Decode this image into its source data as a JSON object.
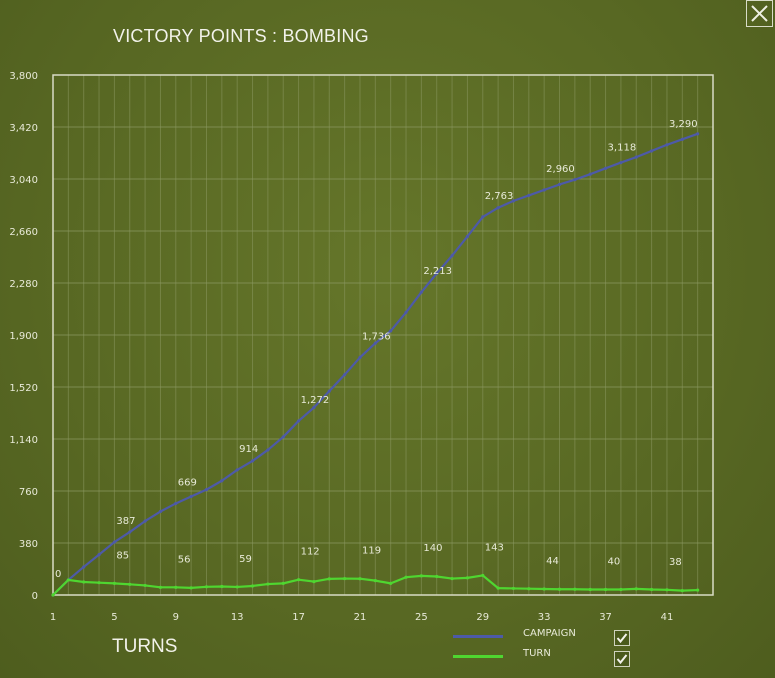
{
  "window": {
    "title": "VICTORY POINTS : BOMBING",
    "close_label": "close"
  },
  "colors": {
    "campaign": "#4d5aa8",
    "turn": "#4fd630",
    "grid": "#8a9760",
    "frame": "#d9dcc6",
    "text": "#e8ead8"
  },
  "legend": {
    "items": [
      {
        "label": "CAMPAIGN",
        "checked": true
      },
      {
        "label": "TURN",
        "checked": true
      }
    ]
  },
  "chart_data": {
    "type": "line",
    "title": "VICTORY POINTS : BOMBING",
    "xlabel": "TURNS",
    "ylabel": "",
    "xlim": [
      1,
      44
    ],
    "ylim": [
      0,
      3800
    ],
    "yticks": [
      0,
      380,
      760,
      1140,
      1520,
      1900,
      2280,
      2660,
      3040,
      3420,
      3800
    ],
    "ytick_labels": [
      "0",
      "380",
      "760",
      "1,140",
      "1,520",
      "1,900",
      "2,280",
      "2,660",
      "3,040",
      "3,420",
      "3,800"
    ],
    "xticks": [
      1,
      5,
      9,
      13,
      17,
      21,
      25,
      29,
      33,
      37,
      41
    ],
    "grid": true,
    "legend_position": "bottom-right",
    "series": [
      {
        "name": "CAMPAIGN",
        "color": "#4d5aa8",
        "x": [
          1,
          2,
          3,
          4,
          5,
          6,
          7,
          8,
          9,
          10,
          11,
          12,
          13,
          14,
          15,
          16,
          17,
          18,
          19,
          20,
          21,
          22,
          23,
          24,
          25,
          26,
          27,
          28,
          29,
          30,
          31,
          32,
          33,
          34,
          35,
          36,
          37,
          38,
          39,
          40,
          41,
          42,
          43
        ],
        "values": [
          0,
          110,
          205,
          295,
          387,
          460,
          540,
          610,
          669,
          720,
          770,
          835,
          914,
          980,
          1060,
          1155,
          1272,
          1370,
          1490,
          1610,
          1736,
          1840,
          1930,
          2065,
          2213,
          2350,
          2480,
          2620,
          2763,
          2830,
          2880,
          2920,
          2960,
          3000,
          3035,
          3075,
          3118,
          3160,
          3200,
          3245,
          3290,
          3330,
          3370
        ]
      },
      {
        "name": "TURN",
        "color": "#4fd630",
        "x": [
          1,
          2,
          3,
          4,
          5,
          6,
          7,
          8,
          9,
          10,
          11,
          12,
          13,
          14,
          15,
          16,
          17,
          18,
          19,
          20,
          21,
          22,
          23,
          24,
          25,
          26,
          27,
          28,
          29,
          30,
          31,
          32,
          33,
          34,
          35,
          36,
          37,
          38,
          39,
          40,
          41,
          42,
          43
        ],
        "values": [
          0,
          110,
          95,
          90,
          85,
          78,
          70,
          56,
          56,
          52,
          60,
          62,
          59,
          66,
          80,
          85,
          112,
          98,
          118,
          120,
          119,
          105,
          85,
          130,
          140,
          135,
          120,
          125,
          143,
          50,
          48,
          46,
          44,
          42,
          42,
          40,
          40,
          40,
          45,
          40,
          38,
          32,
          36
        ]
      }
    ],
    "point_labels": [
      {
        "series": "CAMPAIGN",
        "x": 1,
        "text": "0"
      },
      {
        "series": "CAMPAIGN",
        "x": 5,
        "text": "387"
      },
      {
        "series": "CAMPAIGN",
        "x": 9,
        "text": "669"
      },
      {
        "series": "CAMPAIGN",
        "x": 13,
        "text": "914"
      },
      {
        "series": "CAMPAIGN",
        "x": 17,
        "text": "1,272"
      },
      {
        "series": "CAMPAIGN",
        "x": 21,
        "text": "1,736"
      },
      {
        "series": "CAMPAIGN",
        "x": 25,
        "text": "2,213"
      },
      {
        "series": "CAMPAIGN",
        "x": 29,
        "text": "2,763"
      },
      {
        "series": "CAMPAIGN",
        "x": 33,
        "text": "2,960"
      },
      {
        "series": "CAMPAIGN",
        "x": 37,
        "text": "3,118"
      },
      {
        "series": "CAMPAIGN",
        "x": 41,
        "text": "3,290"
      },
      {
        "series": "TURN",
        "x": 5,
        "text": "85"
      },
      {
        "series": "TURN",
        "x": 9,
        "text": "56"
      },
      {
        "series": "TURN",
        "x": 13,
        "text": "59"
      },
      {
        "series": "TURN",
        "x": 17,
        "text": "112"
      },
      {
        "series": "TURN",
        "x": 21,
        "text": "119"
      },
      {
        "series": "TURN",
        "x": 25,
        "text": "140"
      },
      {
        "series": "TURN",
        "x": 29,
        "text": "143"
      },
      {
        "series": "TURN",
        "x": 33,
        "text": "44"
      },
      {
        "series": "TURN",
        "x": 37,
        "text": "40"
      },
      {
        "series": "TURN",
        "x": 41,
        "text": "38"
      }
    ]
  }
}
